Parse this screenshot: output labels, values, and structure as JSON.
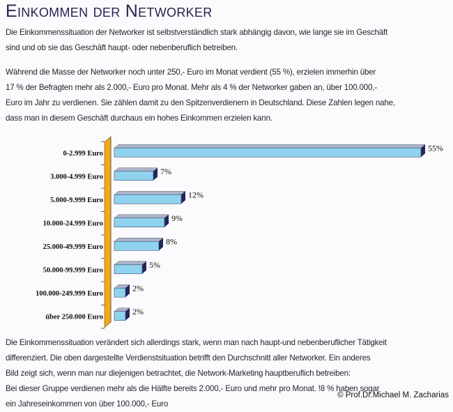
{
  "header": {
    "title": "Einkommen der Networker"
  },
  "intro": {
    "lines": [
      "Die Einkommenssituation der Networker ist selbstverständlich stark abhängig davon, wie lange sie im Geschäft",
      "sind und ob sie das Geschäft haupt- oder nebenberuflich betreiben."
    ]
  },
  "paragraph2": {
    "lines": [
      "Während die Masse der Networker noch unter 250,- Euro im Monat verdient (55 %), erzielen immerhin über",
      "17 % der Befragten mehr als 2.000,- Euro pro Monat. Mehr als 4 % der Networker gaben an, über 100.000,-",
      "Euro im Jahr zu verdienen. Sie zählen damit zu den Spitzenverdienern in Deutschland. Diese Zahlen legen nahe,",
      "dass man in diesem Geschäft durchaus ein hohes Einkommen erzielen kann."
    ]
  },
  "paragraph3": {
    "lines": [
      "Die Einkommenssituation verändert sich allerdings stark, wenn man nach haupt-und nebenberuflicher Tätigkeit",
      "differenziert. Die oben dargestellte Verdienstsituation betrifft den Durchschnitt aller Networker. Ein anderes",
      "Bild zeigt sich, wenn man nur diejenigen betrachtet, die Network-Marketing hauptberuflich betreiben:",
      "Bei dieser Gruppe verdienen mehr als die Hälfte bereits 2.000,- Euro und mehr pro Monat. !8 % haben sogar",
      "ein Jahreseinkommen von über 100.000,- Euro"
    ]
  },
  "footer": {
    "copyright": "© Prof.Dr.Michael M. Zacharias"
  },
  "colors": {
    "bar_front": "#8fd3ef",
    "bar_top": "#a9b3c9",
    "bar_side": "#23285a",
    "axis_wall": "#f2a81d",
    "title": "#27234f"
  },
  "chart_data": {
    "type": "bar",
    "orientation": "horizontal",
    "style": "3d",
    "title": "",
    "xlabel": "",
    "ylabel": "",
    "categories": [
      "0-2.999 Euro",
      "3.000-4.999 Euro",
      "5.000-9.999 Euro",
      "10.000-24.999 Euro",
      "25.000-49.999 Euro",
      "50.000-99.999 Euro",
      "100.000-249.999 Euro",
      "über 250.000 Euro"
    ],
    "values": [
      55,
      7,
      12,
      9,
      8,
      5,
      2,
      2
    ],
    "value_labels": [
      "55%",
      "7%",
      "12%",
      "9%",
      "8%",
      "5%",
      "2%",
      "2%"
    ],
    "unit": "%",
    "xlim": [
      0,
      55
    ],
    "grid": false,
    "legend": "none"
  }
}
